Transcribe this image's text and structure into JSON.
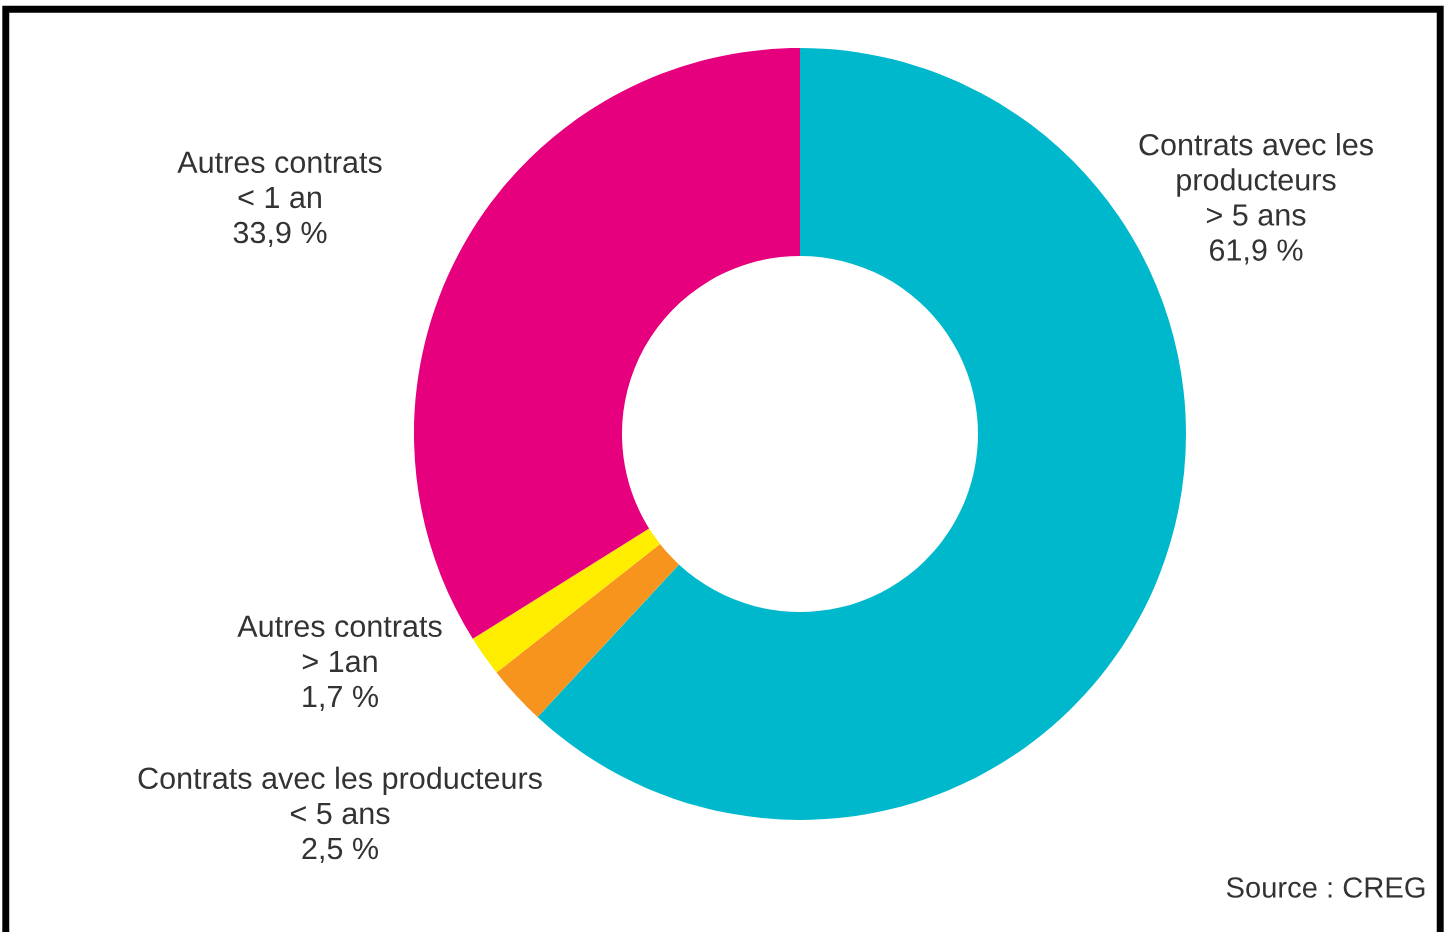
{
  "chart_data": {
    "type": "donut",
    "categories": [
      "Contrats avec les\nproducteurs\n> 5 ans",
      "Contrats avec les producteurs\n< 5 ans",
      "Autres contrats\n> 1an",
      "Autres contrats\n< 1 an"
    ],
    "values": [
      61.9,
      2.5,
      1.7,
      33.9
    ],
    "value_labels": [
      "61,9 %",
      "2,5 %",
      "1,7 %",
      "33,9 %"
    ],
    "colors": [
      "#00b8cc",
      "#f7941d",
      "#ffed00",
      "#e6007e"
    ],
    "annotations": [
      "Source : CREG"
    ],
    "legend": false
  }
}
